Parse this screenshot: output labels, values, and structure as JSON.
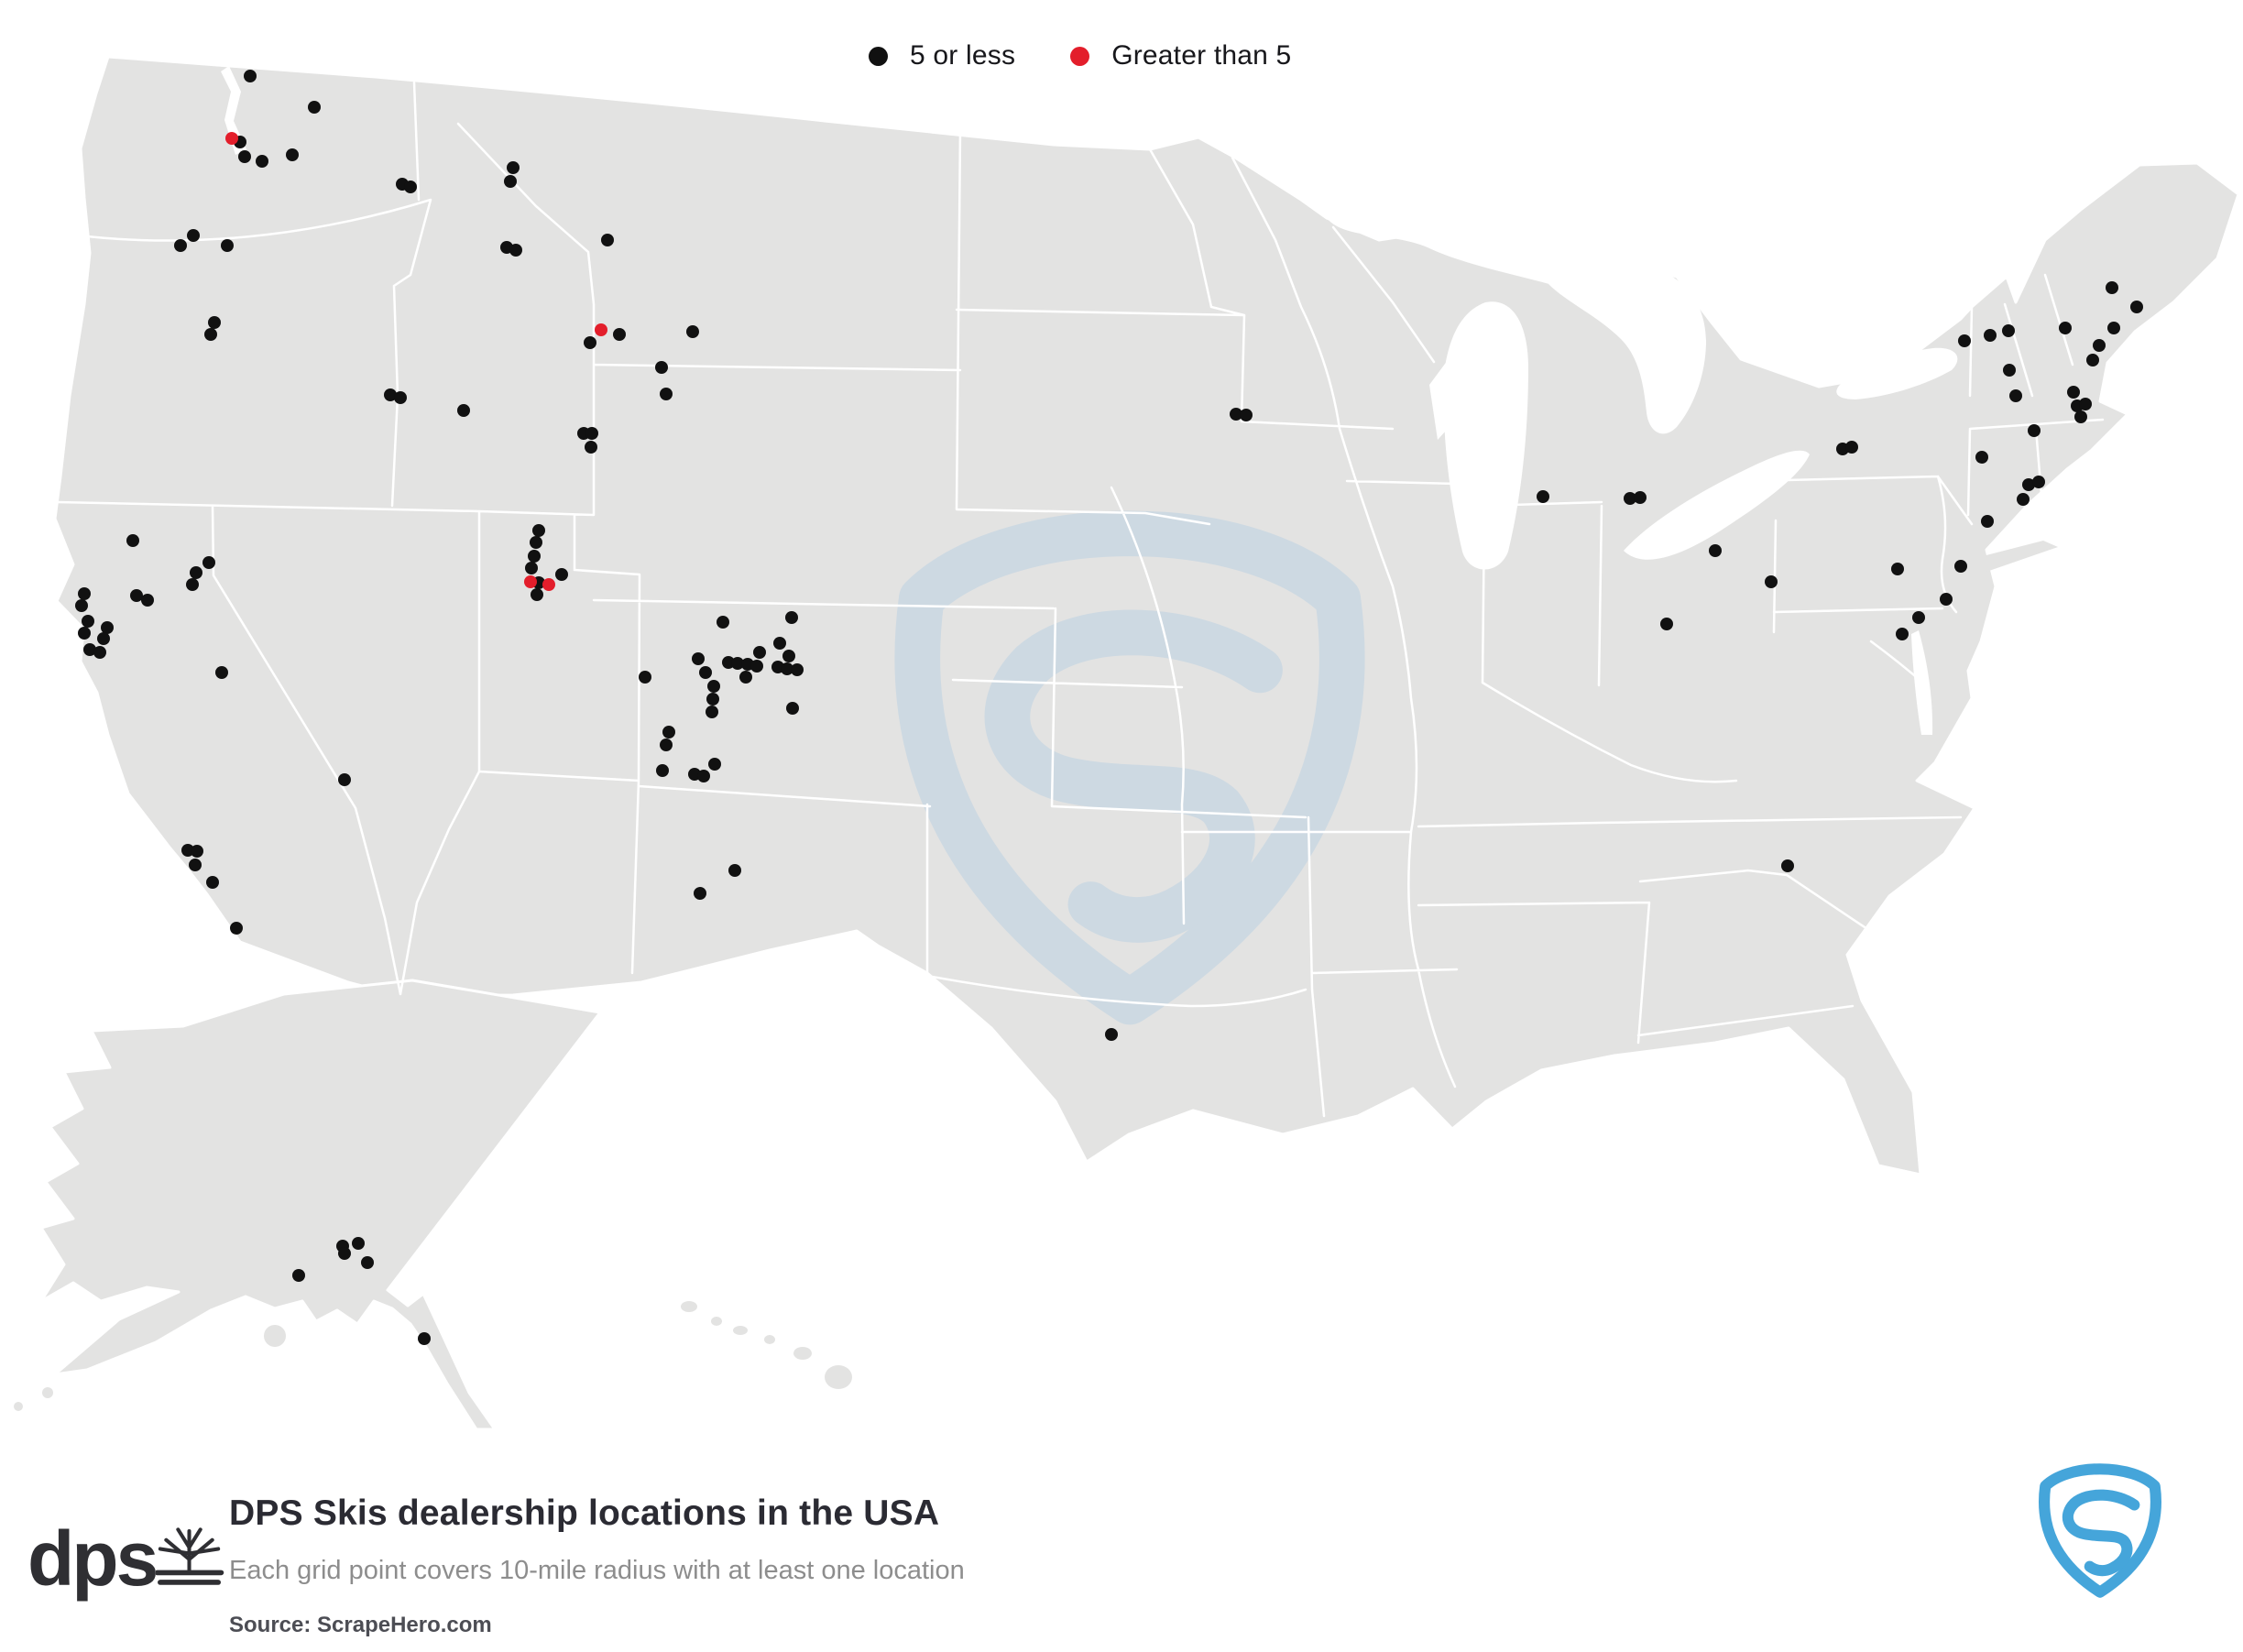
{
  "legend": {
    "items": [
      {
        "label": "5 or less",
        "color": "#111111"
      },
      {
        "label": "Greater than 5",
        "color": "#e31e2b"
      }
    ]
  },
  "title_block": {
    "logo_text": "dps",
    "title": "DPS Skis dealership locations in the USA",
    "subtitle": "Each grid point covers 10-mile radius with at least one location",
    "source": "Source: ScrapeHero.com"
  },
  "map": {
    "dot_radius": 7,
    "colors": {
      "five_or_less": "#111111",
      "greater_than_5": "#e31e2b",
      "land": "#e3e3e2",
      "state_border": "#ffffff",
      "watermark": "#cdd9e2",
      "scrapehero_blue": "#45a5da"
    },
    "points_5_or_less": [
      [
        273,
        83
      ],
      [
        343,
        117
      ],
      [
        262,
        155
      ],
      [
        267,
        171
      ],
      [
        286,
        176
      ],
      [
        319,
        169
      ],
      [
        439,
        201
      ],
      [
        448,
        204
      ],
      [
        211,
        257
      ],
      [
        197,
        268
      ],
      [
        248,
        268
      ],
      [
        234,
        352
      ],
      [
        230,
        365
      ],
      [
        426,
        431
      ],
      [
        437,
        434
      ],
      [
        506,
        448
      ],
      [
        560,
        183
      ],
      [
        557,
        198
      ],
      [
        553,
        270
      ],
      [
        563,
        273
      ],
      [
        663,
        262
      ],
      [
        676,
        365
      ],
      [
        644,
        374
      ],
      [
        756,
        362
      ],
      [
        722,
        401
      ],
      [
        727,
        430
      ],
      [
        637,
        473
      ],
      [
        646,
        473
      ],
      [
        645,
        488
      ],
      [
        588,
        579
      ],
      [
        585,
        592
      ],
      [
        583,
        607
      ],
      [
        580,
        620
      ],
      [
        613,
        627
      ],
      [
        588,
        636
      ],
      [
        586,
        649
      ],
      [
        789,
        679
      ],
      [
        864,
        674
      ],
      [
        851,
        702
      ],
      [
        829,
        712
      ],
      [
        861,
        716
      ],
      [
        762,
        719
      ],
      [
        795,
        723
      ],
      [
        805,
        724
      ],
      [
        816,
        725
      ],
      [
        826,
        727
      ],
      [
        849,
        728
      ],
      [
        859,
        730
      ],
      [
        870,
        731
      ],
      [
        770,
        734
      ],
      [
        704,
        739
      ],
      [
        814,
        739
      ],
      [
        779,
        749
      ],
      [
        778,
        763
      ],
      [
        865,
        773
      ],
      [
        777,
        777
      ],
      [
        730,
        799
      ],
      [
        727,
        813
      ],
      [
        780,
        834
      ],
      [
        723,
        841
      ],
      [
        758,
        845
      ],
      [
        768,
        847
      ],
      [
        802,
        950
      ],
      [
        764,
        975
      ],
      [
        145,
        590
      ],
      [
        228,
        614
      ],
      [
        214,
        625
      ],
      [
        210,
        638
      ],
      [
        92,
        648
      ],
      [
        149,
        650
      ],
      [
        161,
        655
      ],
      [
        89,
        661
      ],
      [
        96,
        678
      ],
      [
        117,
        685
      ],
      [
        92,
        691
      ],
      [
        113,
        697
      ],
      [
        98,
        709
      ],
      [
        109,
        712
      ],
      [
        242,
        734
      ],
      [
        376,
        851
      ],
      [
        205,
        928
      ],
      [
        215,
        929
      ],
      [
        213,
        944
      ],
      [
        232,
        963
      ],
      [
        258,
        1013
      ],
      [
        1349,
        452
      ],
      [
        1360,
        453
      ],
      [
        1684,
        542
      ],
      [
        1779,
        544
      ],
      [
        1790,
        543
      ],
      [
        1872,
        601
      ],
      [
        1933,
        635
      ],
      [
        1819,
        681
      ],
      [
        2305,
        314
      ],
      [
        2332,
        335
      ],
      [
        2144,
        372
      ],
      [
        2172,
        366
      ],
      [
        2192,
        361
      ],
      [
        2254,
        358
      ],
      [
        2307,
        358
      ],
      [
        2291,
        377
      ],
      [
        2284,
        393
      ],
      [
        2193,
        404
      ],
      [
        2200,
        432
      ],
      [
        2263,
        428
      ],
      [
        2267,
        443
      ],
      [
        2276,
        441
      ],
      [
        2271,
        455
      ],
      [
        2220,
        470
      ],
      [
        2163,
        499
      ],
      [
        2011,
        490
      ],
      [
        2021,
        488
      ],
      [
        2214,
        529
      ],
      [
        2225,
        526
      ],
      [
        2208,
        545
      ],
      [
        2169,
        569
      ],
      [
        2071,
        621
      ],
      [
        2140,
        618
      ],
      [
        2124,
        654
      ],
      [
        2094,
        674
      ],
      [
        2076,
        692
      ],
      [
        1951,
        945
      ],
      [
        1213,
        1129
      ],
      [
        374,
        1360
      ],
      [
        391,
        1357
      ],
      [
        376,
        1368
      ],
      [
        401,
        1378
      ],
      [
        326,
        1392
      ],
      [
        463,
        1461
      ]
    ],
    "points_greater_than_5": [
      [
        253,
        151
      ],
      [
        656,
        360
      ],
      [
        579,
        635
      ],
      [
        599,
        638
      ]
    ]
  }
}
